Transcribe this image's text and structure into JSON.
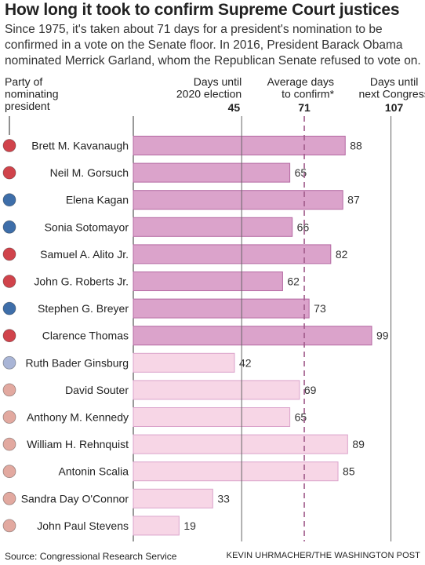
{
  "title": "How long it took to confirm Supreme Court justices",
  "subtitle": "Since 1975, it's taken about 71 days for a president's nomination to be confirmed in a vote on the Senate floor. In 2016, President Barack Obama nominated Merrick Garland, whom the Republican Senate refused to vote on.",
  "source": "Source: Congressional Research Service",
  "credit": "KEVIN UHRMACHER/THE WASHINGTON POST",
  "colors": {
    "republican_recent": "#d0434b",
    "democrat_recent": "#3e6ea9",
    "republican_early": "#e2a9a0",
    "democrat_early": "#a9b5d6",
    "bar_recent": "#dba3cb",
    "bar_recent_stroke": "#b468a2",
    "bar_early": "#f7d6e6",
    "bar_early_stroke": "#dba3cb"
  },
  "chart_data": {
    "type": "bar",
    "orientation": "horizontal",
    "party_header": [
      "Party of",
      "nominating",
      "president"
    ],
    "categories": [
      "Brett M. Kavanaugh",
      "Neil M. Gorsuch",
      "Elena Kagan",
      "Sonia Sotomayor",
      "Samuel A. Alito Jr.",
      "John G. Roberts Jr.",
      "Stephen G. Breyer",
      "Clarence Thomas",
      "Ruth Bader Ginsburg",
      "David Souter",
      "Anthony M. Kennedy",
      "William H. Rehnquist",
      "Antonin Scalia",
      "Sandra Day O'Connor",
      "John Paul Stevens"
    ],
    "values": [
      88,
      65,
      87,
      66,
      82,
      62,
      73,
      99,
      42,
      69,
      65,
      89,
      85,
      33,
      19
    ],
    "party": [
      "republican",
      "republican",
      "democrat",
      "democrat",
      "republican",
      "republican",
      "democrat",
      "republican",
      "democrat",
      "republican",
      "republican",
      "republican",
      "republican",
      "republican",
      "republican"
    ],
    "era": [
      "recent",
      "recent",
      "recent",
      "recent",
      "recent",
      "recent",
      "recent",
      "recent",
      "early",
      "early",
      "early",
      "early",
      "early",
      "early",
      "early"
    ],
    "xlim": [
      0,
      107
    ],
    "reference_lines": [
      {
        "label": [
          "Days until",
          "2020 election"
        ],
        "value": 45,
        "style": "solid"
      },
      {
        "label": [
          "Average days",
          "to confirm*"
        ],
        "value": 71,
        "style": "dashed"
      },
      {
        "label": [
          "Days until",
          "next Congress"
        ],
        "value": 107,
        "style": "solid"
      }
    ]
  }
}
